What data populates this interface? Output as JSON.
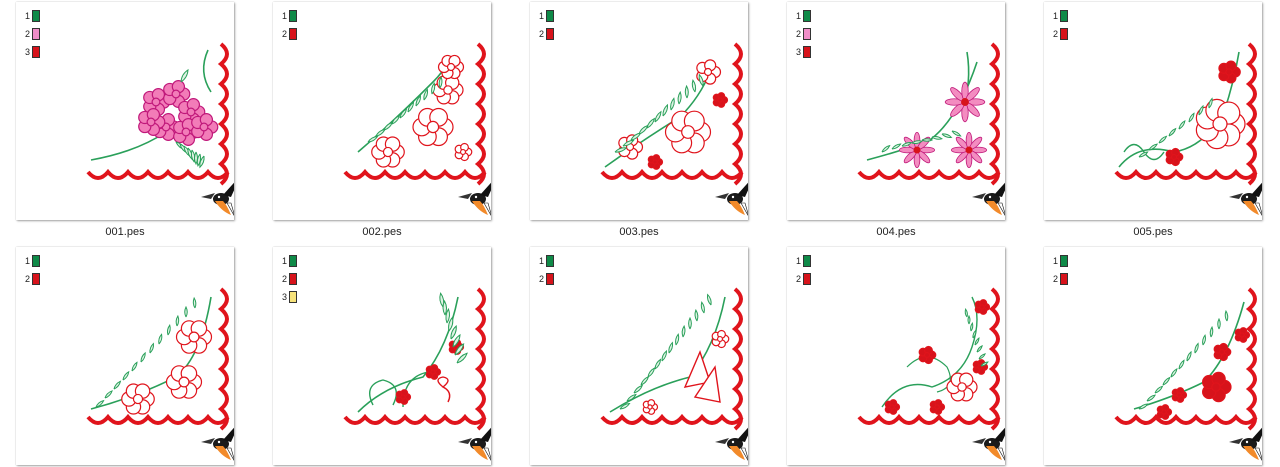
{
  "files": [
    {
      "name": "001.pes",
      "colors": [
        {
          "n": "1",
          "hex": "#0f8a48"
        },
        {
          "n": "2",
          "hex": "#f08ec8"
        },
        {
          "n": "3",
          "hex": "#d7131b"
        }
      ],
      "flower_hex": "#f06aa8",
      "motif": "pink-cluster"
    },
    {
      "name": "002.pes",
      "colors": [
        {
          "n": "1",
          "hex": "#0f8a48"
        },
        {
          "n": "2",
          "hex": "#d7131b"
        }
      ],
      "flower_hex": "#d7131b",
      "motif": "red-outline-roses"
    },
    {
      "name": "003.pes",
      "colors": [
        {
          "n": "1",
          "hex": "#0f8a48"
        },
        {
          "n": "2",
          "hex": "#d7131b"
        }
      ],
      "flower_hex": "#d7131b",
      "motif": "rose-spray"
    },
    {
      "name": "004.pes",
      "colors": [
        {
          "n": "1",
          "hex": "#0f8a48"
        },
        {
          "n": "2",
          "hex": "#f08ec8"
        },
        {
          "n": "3",
          "hex": "#d7131b"
        }
      ],
      "flower_hex": "#ef6fae",
      "motif": "pink-daisies"
    },
    {
      "name": "005.pes",
      "colors": [
        {
          "n": "1",
          "hex": "#0f8a48"
        },
        {
          "n": "2",
          "hex": "#d7131b"
        }
      ],
      "flower_hex": "#d7131b",
      "motif": "curly-rose"
    },
    {
      "name": "",
      "colors": [
        {
          "n": "1",
          "hex": "#0f8a48"
        },
        {
          "n": "2",
          "hex": "#d7131b"
        }
      ],
      "flower_hex": "#d7131b",
      "motif": "three-roses"
    },
    {
      "name": "",
      "colors": [
        {
          "n": "1",
          "hex": "#0f8a48"
        },
        {
          "n": "2",
          "hex": "#d7131b"
        },
        {
          "n": "3",
          "hex": "#f6e27a"
        }
      ],
      "flower_hex": "#d7131b",
      "motif": "bow-bouquet"
    },
    {
      "name": "",
      "colors": [
        {
          "n": "1",
          "hex": "#0f8a48"
        },
        {
          "n": "2",
          "hex": "#d7131b"
        }
      ],
      "flower_hex": "#d7131b",
      "motif": "lily-spray"
    },
    {
      "name": "",
      "colors": [
        {
          "n": "1",
          "hex": "#0f8a48"
        },
        {
          "n": "2",
          "hex": "#d7131b"
        }
      ],
      "flower_hex": "#d7131b",
      "motif": "swirl-roses"
    },
    {
      "name": "",
      "colors": [
        {
          "n": "1",
          "hex": "#0f8a48"
        },
        {
          "n": "2",
          "hex": "#d7131b"
        }
      ],
      "flower_hex": "#d7131b",
      "motif": "small-flowers"
    }
  ],
  "logo_icon": "hummingbird-icon",
  "theme": {
    "border_red": "#e0141c",
    "leaf_green": "#2aa05a"
  }
}
